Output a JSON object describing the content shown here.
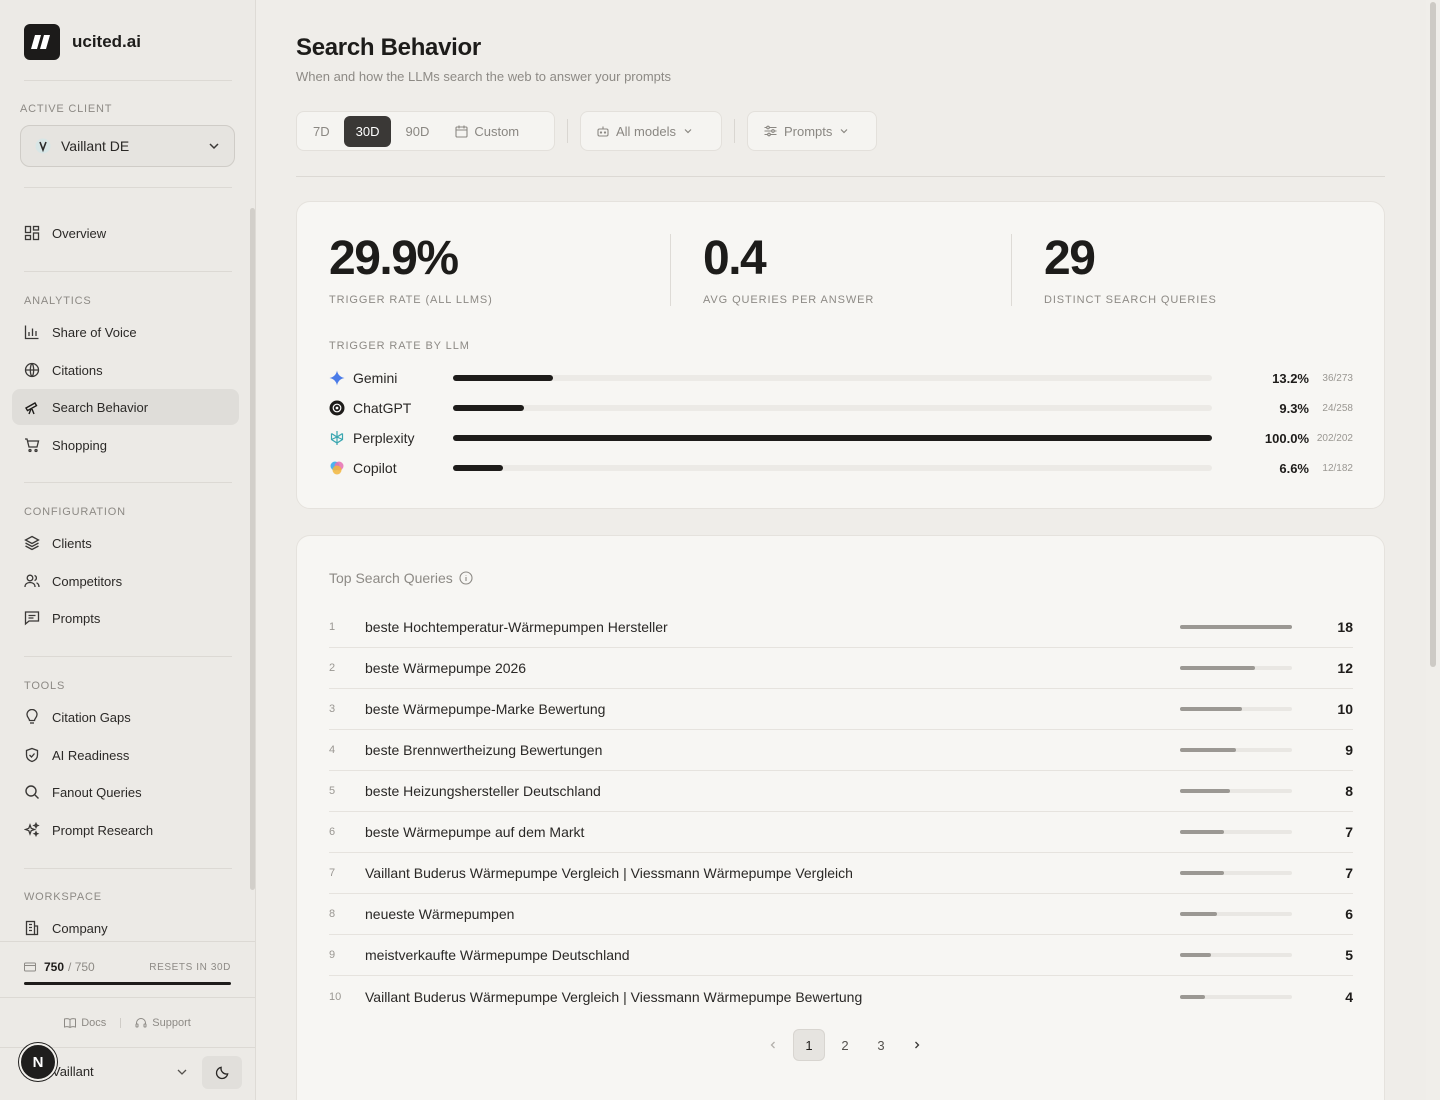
{
  "brand": {
    "name": "ucited.ai"
  },
  "sidebar": {
    "active_client_label": "ACTIVE CLIENT",
    "active_client": "Vaillant DE",
    "overview": "Overview",
    "analytics_label": "ANALYTICS",
    "analytics": [
      "Share of Voice",
      "Citations",
      "Search Behavior",
      "Shopping"
    ],
    "configuration_label": "CONFIGURATION",
    "configuration": [
      "Clients",
      "Competitors",
      "Prompts"
    ],
    "tools_label": "TOOLS",
    "tools": [
      "Citation Gaps",
      "AI Readiness",
      "Fanout Queries",
      "Prompt Research"
    ],
    "workspace_label": "WORKSPACE",
    "workspace": [
      "Company"
    ],
    "credits": {
      "used": "750",
      "total": "/ 750",
      "reset": "RESETS IN 30D",
      "fraction": 1.0
    },
    "docs": "Docs",
    "support": "Support",
    "user_initial": "N",
    "user_name": "Vaillant"
  },
  "header": {
    "title": "Search Behavior",
    "subtitle": "When and how the LLMs search the web to answer your prompts"
  },
  "filters": {
    "ranges": [
      "7D",
      "30D",
      "90D"
    ],
    "custom": "Custom",
    "models": "All models",
    "prompts": "Prompts"
  },
  "stats": [
    {
      "value": "29.9%",
      "label": "TRIGGER RATE (ALL LLMS)"
    },
    {
      "value": "0.4",
      "label": "AVG QUERIES PER ANSWER"
    },
    {
      "value": "29",
      "label": "DISTINCT SEARCH QUERIES"
    }
  ],
  "llm_title": "TRIGGER RATE BY LLM",
  "llms": [
    {
      "name": "Gemini",
      "pct": "13.2%",
      "count": "36/273",
      "rate": 0.132
    },
    {
      "name": "ChatGPT",
      "pct": "9.3%",
      "count": "24/258",
      "rate": 0.093
    },
    {
      "name": "Perplexity",
      "pct": "100.0%",
      "count": "202/202",
      "rate": 1.0
    },
    {
      "name": "Copilot",
      "pct": "6.6%",
      "count": "12/182",
      "rate": 0.066
    }
  ],
  "top_queries_title": "Top Search Queries",
  "queries": [
    {
      "rank": "1",
      "text": "beste Hochtemperatur-Wärmepumpen Hersteller",
      "count": "18",
      "value": 18
    },
    {
      "rank": "2",
      "text": "beste Wärmepumpe 2026",
      "count": "12",
      "value": 12
    },
    {
      "rank": "3",
      "text": "beste Wärmepumpe-Marke Bewertung",
      "count": "10",
      "value": 10
    },
    {
      "rank": "4",
      "text": "beste Brennwertheizung Bewertungen",
      "count": "9",
      "value": 9
    },
    {
      "rank": "5",
      "text": "beste Heizungshersteller Deutschland",
      "count": "8",
      "value": 8
    },
    {
      "rank": "6",
      "text": "beste Wärmepumpe auf dem Markt",
      "count": "7",
      "value": 7
    },
    {
      "rank": "7",
      "text": "Vaillant Buderus Wärmepumpe Vergleich | Viessmann Wärmepumpe Vergleich",
      "count": "7",
      "value": 7
    },
    {
      "rank": "8",
      "text": "neueste Wärmepumpen",
      "count": "6",
      "value": 6
    },
    {
      "rank": "9",
      "text": "meistverkaufte Wärmepumpe Deutschland",
      "count": "5",
      "value": 5
    },
    {
      "rank": "10",
      "text": "Vaillant Buderus Wärmepumpe Vergleich | Viessmann Wärmepumpe Bewertung",
      "count": "4",
      "value": 4
    }
  ],
  "pager": [
    "1",
    "2",
    "3"
  ]
}
